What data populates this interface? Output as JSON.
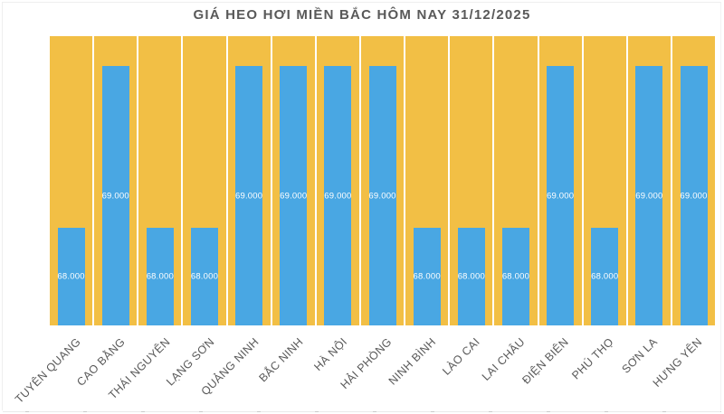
{
  "chart_data": {
    "type": "bar",
    "title": "GIÁ HEO HƠI MIỀN BẮC HÔM NAY 31/12/2025",
    "categories": [
      "TUYÊN QUANG",
      "CAO BẰNG",
      "THÁI NGUYÊN",
      "LẠNG SƠN",
      "QUẢNG NINH",
      "BẮC NINH",
      "HÀ NỘI",
      "HẢI PHÒNG",
      "NINH BÌNH",
      "LÀO CAI",
      "LAI CHÂU",
      "ĐIỆN BIÊN",
      "PHÚ THỌ",
      "SƠN LA",
      "HƯNG YÊN"
    ],
    "values": [
      68000,
      69000,
      68000,
      68000,
      69000,
      69000,
      69000,
      69000,
      68000,
      68000,
      68000,
      69000,
      68000,
      69000,
      69000
    ],
    "value_labels": [
      "68.000",
      "69.000",
      "68.000",
      "68.000",
      "69.000",
      "69.000",
      "69.000",
      "69.000",
      "68.000",
      "68.000",
      "68.000",
      "69.000",
      "68.000",
      "69.000",
      "69.000"
    ],
    "xlabel": "",
    "ylabel": "",
    "ylim": [
      67400,
      69185
    ],
    "grid": false,
    "legend": "none",
    "x_tick_rotation_deg": -45,
    "value_label_position": "inside-center",
    "colors": {
      "bar": "#49A7E3",
      "column_background": "#F2BF45",
      "value_label": "#FFFFFF",
      "axis_label": "#595959",
      "title": "#595959"
    }
  }
}
